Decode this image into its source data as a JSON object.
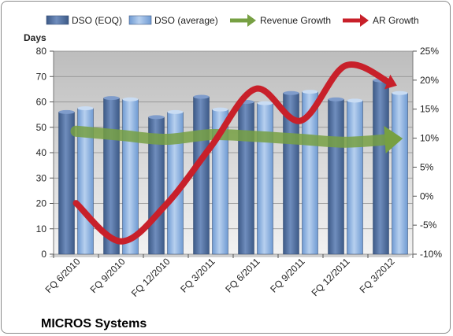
{
  "chart_data": {
    "type": "bar",
    "title": "MICROS Systems",
    "ylabel": "Days",
    "ylim": [
      0,
      80
    ],
    "y_ticks": [
      0,
      10,
      20,
      30,
      40,
      50,
      60,
      70,
      80
    ],
    "y2lim": [
      -10,
      25
    ],
    "y2_ticks": [
      "-10%",
      "-5%",
      "0%",
      "5%",
      "10%",
      "15%",
      "20%",
      "25%"
    ],
    "y2_tick_values": [
      -10,
      -5,
      0,
      5,
      10,
      15,
      20,
      25
    ],
    "categories": [
      "FQ 6/2010",
      "FQ 9/2010",
      "FQ 12/2010",
      "FQ 3/2011",
      "FQ 6/2011",
      "FQ 9/2011",
      "FQ 12/2011",
      "FQ 3/2012"
    ],
    "series": [
      {
        "name": "DSO (EOQ)",
        "type": "bar",
        "axis": "left",
        "color": "#4f6d9c",
        "values": [
          56,
          61.5,
          54,
          62,
          60,
          63.5,
          61,
          68.5
        ]
      },
      {
        "name": "DSO (average)",
        "type": "bar",
        "axis": "left",
        "color": "#8cb2e0",
        "values": [
          57.5,
          61,
          56,
          57,
          59.5,
          64,
          60.5,
          63.5
        ]
      },
      {
        "name": "Revenue Growth",
        "type": "line",
        "axis": "right",
        "color": "#77a043",
        "values": [
          11.2,
          10.5,
          9.8,
          10.6,
          10.3,
          9.8,
          9.3,
          9.8
        ]
      },
      {
        "name": "AR Growth",
        "type": "line",
        "axis": "right",
        "color": "#c8202a",
        "values": [
          -1.2,
          -7.8,
          -1.5,
          8.5,
          18.5,
          13,
          22.5,
          19.5
        ]
      }
    ],
    "grid": true,
    "legend_position": "top"
  }
}
